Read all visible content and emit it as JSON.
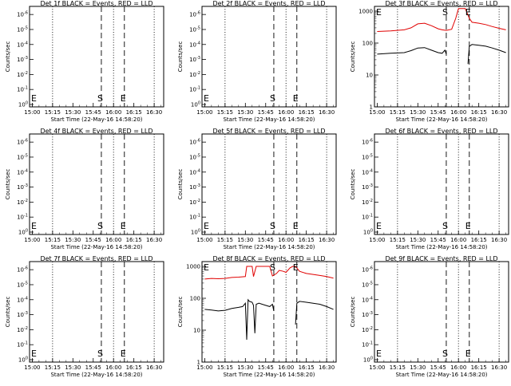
{
  "figure": {
    "background": "#ffffff",
    "ink_color": "#000000",
    "events_color": "#000000",
    "lld_color": "#e00000"
  },
  "chart_data": [
    {
      "type": "line",
      "title": "Det 1f BLACK = Events, RED = LLD",
      "xlabel": "Start Time (22-May-16 14:58:20)",
      "ylabel": "Counts/sec",
      "x_ticks": [
        "15:00",
        "15:15",
        "15:30",
        "15:45",
        "16:00",
        "16:15",
        "16:30"
      ],
      "y_ticks": [
        "10^0",
        "10^-1",
        "10^-2",
        "10^-3",
        "10^-4",
        "10^-5",
        "10^-6"
      ],
      "y_scale": "log",
      "dotted_lines": [
        "15:15",
        "16:00",
        "16:30"
      ],
      "dashed_lines": [
        "15:51",
        "16:08"
      ],
      "markers": [
        {
          "label": "E",
          "at": "15:00"
        },
        {
          "label": "S",
          "at": "15:51"
        },
        {
          "label": "E",
          "at": "16:08"
        }
      ],
      "series": []
    },
    {
      "type": "line",
      "title": "Det 2f BLACK = Events, RED = LLD",
      "xlabel": "Start Time (22-May-16 14:58:20)",
      "ylabel": "Counts/sec",
      "x_ticks": [
        "15:00",
        "15:15",
        "15:30",
        "15:45",
        "16:00",
        "16:15",
        "16:30"
      ],
      "y_ticks": [
        "10^0",
        "10^-1",
        "10^-2",
        "10^-3",
        "10^-4",
        "10^-5",
        "10^-6"
      ],
      "y_scale": "log",
      "dotted_lines": [
        "15:15",
        "16:00",
        "16:30"
      ],
      "dashed_lines": [
        "15:51",
        "16:08"
      ],
      "markers": [
        {
          "label": "E",
          "at": "15:00"
        },
        {
          "label": "S",
          "at": "15:51"
        },
        {
          "label": "E",
          "at": "16:08"
        }
      ],
      "series": []
    },
    {
      "type": "line",
      "title": "Det 3f BLACK = Events, RED = LLD",
      "xlabel": "Start Time (22-May-16 14:58:20)",
      "ylabel": "Counts/sec",
      "x_ticks": [
        "15:00",
        "15:15",
        "15:30",
        "15:45",
        "16:00",
        "16:15",
        "16:30"
      ],
      "y_ticks": [
        "1000",
        "100",
        "10",
        "1"
      ],
      "y_scale": "log",
      "dotted_lines": [
        "15:15",
        "16:00",
        "16:30"
      ],
      "dashed_lines": [
        "15:51",
        "16:08"
      ],
      "markers": [
        {
          "label": "E",
          "at": "15:00"
        },
        {
          "label": "S",
          "at": "15:51"
        },
        {
          "label": "E",
          "at": "16:08"
        }
      ],
      "series": [
        {
          "color": "#e00000",
          "x": [
            "15:00",
            "15:10",
            "15:20",
            "15:25",
            "15:30",
            "15:35",
            "15:40",
            "15:45",
            "15:48",
            "15:51",
            "15:55",
            "15:58",
            "16:00",
            "16:01",
            "16:05",
            "16:08",
            "16:10",
            "16:15",
            "16:20",
            "16:25",
            "16:30",
            "16:35"
          ],
          "y": [
            230,
            240,
            260,
            300,
            400,
            420,
            350,
            280,
            260,
            250,
            270,
            600,
            1200,
            1200,
            1200,
            600,
            450,
            420,
            380,
            330,
            290,
            260
          ]
        },
        {
          "color": "#000000",
          "x": [
            "15:00",
            "15:10",
            "15:20",
            "15:25",
            "15:30",
            "15:35",
            "15:40",
            "15:45",
            "15:48",
            "15:50",
            "15:51"
          ],
          "y": [
            45,
            48,
            50,
            58,
            70,
            72,
            60,
            50,
            48,
            60,
            45
          ]
        },
        {
          "color": "#000000",
          "x": [
            "16:07",
            "16:08",
            "16:10",
            "16:15",
            "16:20",
            "16:25",
            "16:30",
            "16:35"
          ],
          "y": [
            22,
            80,
            90,
            85,
            80,
            70,
            60,
            50
          ]
        }
      ]
    },
    {
      "type": "line",
      "title": "Det 4f BLACK = Events, RED = LLD",
      "xlabel": "Start Time (22-May-16 14:58:20)",
      "ylabel": "Counts/sec",
      "x_ticks": [
        "15:00",
        "15:15",
        "15:30",
        "15:45",
        "16:00",
        "16:15",
        "16:30"
      ],
      "y_ticks": [
        "10^0",
        "10^-1",
        "10^-2",
        "10^-3",
        "10^-4",
        "10^-5",
        "10^-6"
      ],
      "y_scale": "log",
      "dotted_lines": [
        "15:15",
        "16:00",
        "16:30"
      ],
      "dashed_lines": [
        "15:51",
        "16:08"
      ],
      "markers": [
        {
          "label": "E",
          "at": "15:00"
        },
        {
          "label": "S",
          "at": "15:51"
        },
        {
          "label": "E",
          "at": "16:08"
        }
      ],
      "series": []
    },
    {
      "type": "line",
      "title": "Det 5f BLACK = Events, RED = LLD",
      "xlabel": "Start Time (22-May-16 14:58:20)",
      "ylabel": "Counts/sec",
      "x_ticks": [
        "15:00",
        "15:15",
        "15:30",
        "15:45",
        "16:00",
        "16:15",
        "16:30"
      ],
      "y_ticks": [
        "10^0",
        "10^-1",
        "10^-2",
        "10^-3",
        "10^-4",
        "10^-5",
        "10^-6"
      ],
      "y_scale": "log",
      "dotted_lines": [
        "15:15",
        "16:00",
        "16:30"
      ],
      "dashed_lines": [
        "15:51",
        "16:08"
      ],
      "markers": [
        {
          "label": "E",
          "at": "15:00"
        },
        {
          "label": "S",
          "at": "15:51"
        },
        {
          "label": "E",
          "at": "16:08"
        }
      ],
      "series": []
    },
    {
      "type": "line",
      "title": "Det 6f BLACK = Events, RED = LLD",
      "xlabel": "Start Time (22-May-16 14:58:20)",
      "ylabel": "Counts/sec",
      "x_ticks": [
        "15:00",
        "15:15",
        "15:30",
        "15:45",
        "16:00",
        "16:15",
        "16:30"
      ],
      "y_ticks": [
        "10^0",
        "10^-1",
        "10^-2",
        "10^-3",
        "10^-4",
        "10^-5",
        "10^-6"
      ],
      "y_scale": "log",
      "dotted_lines": [
        "15:15",
        "16:00",
        "16:30"
      ],
      "dashed_lines": [
        "15:51",
        "16:08"
      ],
      "markers": [
        {
          "label": "E",
          "at": "15:00"
        },
        {
          "label": "S",
          "at": "15:51"
        },
        {
          "label": "E",
          "at": "16:08"
        }
      ],
      "series": []
    },
    {
      "type": "line",
      "title": "Det 7f BLACK = Events, RED = LLD",
      "xlabel": "Start Time (22-May-16 14:58:20)",
      "ylabel": "Counts/sec",
      "x_ticks": [
        "15:00",
        "15:15",
        "15:30",
        "15:45",
        "16:00",
        "16:15",
        "16:30"
      ],
      "y_ticks": [
        "10^0",
        "10^-1",
        "10^-2",
        "10^-3",
        "10^-4",
        "10^-5",
        "10^-6"
      ],
      "y_scale": "log",
      "dotted_lines": [
        "15:15",
        "16:00",
        "16:30"
      ],
      "dashed_lines": [
        "15:51",
        "16:08"
      ],
      "markers": [
        {
          "label": "E",
          "at": "15:00"
        },
        {
          "label": "S",
          "at": "15:51"
        },
        {
          "label": "E",
          "at": "16:08"
        }
      ],
      "series": []
    },
    {
      "type": "line",
      "title": "Det 8f BLACK = Events, RED = LLD",
      "xlabel": "Start Time (22-May-16 14:58:20)",
      "ylabel": "Counts/sec",
      "x_ticks": [
        "15:00",
        "15:15",
        "15:30",
        "15:45",
        "16:00",
        "16:15",
        "16:30"
      ],
      "y_ticks": [
        "1000",
        "100",
        "10",
        "1"
      ],
      "y_scale": "log",
      "dotted_lines": [
        "15:15",
        "16:00",
        "16:30"
      ],
      "dashed_lines": [
        "15:51",
        "16:08"
      ],
      "markers": [
        {
          "label": "E",
          "at": "15:00"
        },
        {
          "label": "S",
          "at": "15:51"
        },
        {
          "label": "E",
          "at": "16:08"
        }
      ],
      "series": [
        {
          "color": "#e00000",
          "x": [
            "15:00",
            "15:05",
            "15:10",
            "15:15",
            "15:20",
            "15:25",
            "15:30",
            "15:31",
            "15:33",
            "15:35",
            "15:36",
            "15:38",
            "15:40",
            "15:45",
            "15:48",
            "15:50",
            "15:53",
            "15:55",
            "15:58",
            "16:00",
            "16:03",
            "16:05",
            "16:07",
            "16:10",
            "16:15",
            "16:20",
            "16:25",
            "16:30",
            "16:35"
          ],
          "y": [
            400,
            420,
            410,
            420,
            450,
            460,
            480,
            1000,
            1000,
            1000,
            480,
            1000,
            1000,
            1000,
            1000,
            500,
            600,
            750,
            700,
            650,
            900,
            1000,
            1000,
            700,
            600,
            560,
            520,
            480,
            430
          ]
        },
        {
          "color": "#000000",
          "x": [
            "15:00",
            "15:05",
            "15:10",
            "15:15",
            "15:20",
            "15:25",
            "15:28",
            "15:30",
            "15:31",
            "15:32",
            "15:33",
            "15:35",
            "15:36",
            "15:37",
            "15:38",
            "15:40",
            "15:45",
            "15:48",
            "15:50",
            "15:51"
          ],
          "y": [
            45,
            43,
            40,
            42,
            48,
            52,
            55,
            70,
            5,
            90,
            80,
            75,
            60,
            8,
            65,
            70,
            60,
            55,
            65,
            40
          ]
        },
        {
          "color": "#000000",
          "x": [
            "16:07",
            "16:08",
            "16:10",
            "16:15",
            "16:20",
            "16:25",
            "16:30",
            "16:35"
          ],
          "y": [
            15,
            70,
            80,
            75,
            70,
            65,
            55,
            45
          ]
        }
      ]
    },
    {
      "type": "line",
      "title": "Det 9f BLACK = Events, RED = LLD",
      "xlabel": "Start Time (22-May-16 14:58:20)",
      "ylabel": "Counts/sec",
      "x_ticks": [
        "15:00",
        "15:15",
        "15:30",
        "15:45",
        "16:00",
        "16:15",
        "16:30"
      ],
      "y_ticks": [
        "10^0",
        "10^-1",
        "10^-2",
        "10^-3",
        "10^-4",
        "10^-5",
        "10^-6"
      ],
      "y_scale": "log",
      "dotted_lines": [
        "15:15",
        "16:00",
        "16:30"
      ],
      "dashed_lines": [
        "15:51",
        "16:08"
      ],
      "markers": [
        {
          "label": "E",
          "at": "15:00"
        },
        {
          "label": "S",
          "at": "15:51"
        },
        {
          "label": "E",
          "at": "16:08"
        }
      ],
      "series": []
    }
  ]
}
